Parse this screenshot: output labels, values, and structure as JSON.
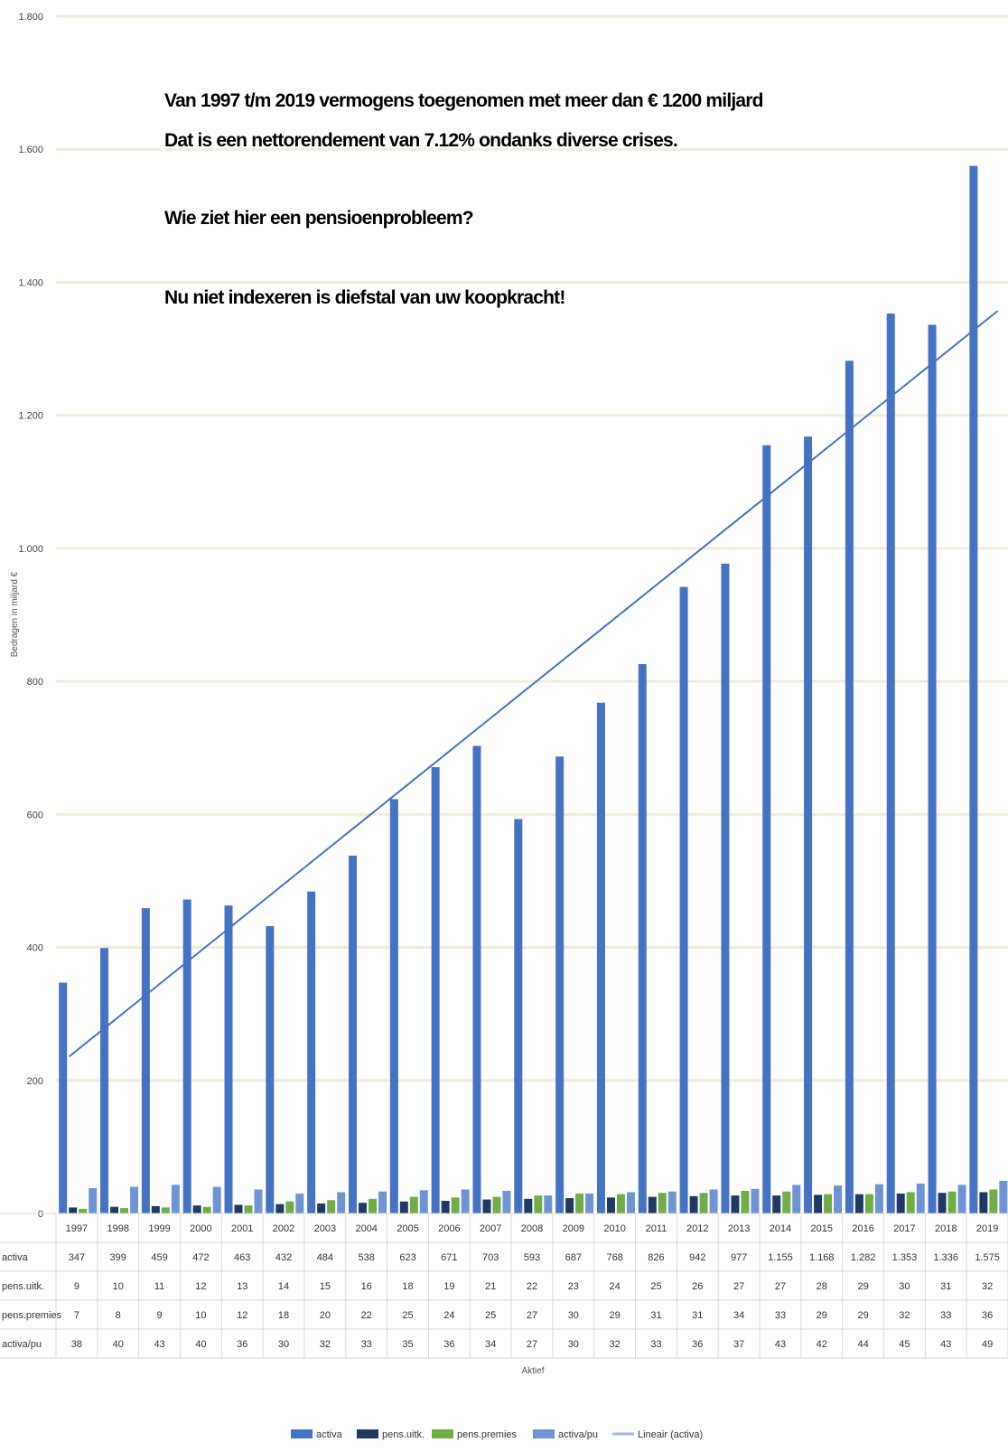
{
  "chart_data": {
    "type": "bar",
    "ylabel": "Bedragen in miljard €",
    "xlabel": "Aktief",
    "ylim": [
      0,
      1800
    ],
    "yticks": [
      0,
      200,
      400,
      600,
      800,
      1000,
      1200,
      1400,
      1600,
      1800
    ],
    "ytick_labels": [
      "0",
      "200",
      "400",
      "600",
      "800",
      "1.000",
      "1.200",
      "1.400",
      "1.600",
      "1.800"
    ],
    "grid": true,
    "legend_position": "bottom",
    "categories": [
      "1997",
      "1998",
      "1999",
      "2000",
      "2001",
      "2002",
      "2003",
      "2004",
      "2005",
      "2006",
      "2007",
      "2008",
      "2009",
      "2010",
      "2011",
      "2012",
      "2013",
      "2014",
      "2015",
      "2016",
      "2017",
      "2018",
      "2019"
    ],
    "series": [
      {
        "name": "activa",
        "color": "#4472c4",
        "values": [
          347,
          399,
          459,
          472,
          463,
          432,
          484,
          538,
          623,
          671,
          703,
          593,
          687,
          768,
          826,
          942,
          977,
          1155,
          1168,
          1282,
          1353,
          1336,
          1575
        ],
        "labels": [
          "347",
          "399",
          "459",
          "472",
          "463",
          "432",
          "484",
          "538",
          "623",
          "671",
          "703",
          "593",
          "687",
          "768",
          "826",
          "942",
          "977",
          "1.155",
          "1.168",
          "1.282",
          "1.353",
          "1.336",
          "1.575"
        ]
      },
      {
        "name": "pens.uitk.",
        "color": "#203864",
        "values": [
          9,
          10,
          11,
          12,
          13,
          14,
          15,
          16,
          18,
          19,
          21,
          22,
          23,
          24,
          25,
          26,
          27,
          27,
          28,
          29,
          30,
          31,
          32
        ]
      },
      {
        "name": "pens.premies",
        "color": "#70ad47",
        "values": [
          7,
          8,
          9,
          10,
          12,
          18,
          20,
          22,
          25,
          24,
          25,
          27,
          30,
          29,
          31,
          31,
          34,
          33,
          29,
          29,
          32,
          33,
          36
        ]
      },
      {
        "name": "activa/pu",
        "color": "#6f94d6",
        "values": [
          38,
          40,
          43,
          40,
          36,
          30,
          32,
          33,
          35,
          36,
          34,
          27,
          30,
          32,
          33,
          36,
          37,
          43,
          42,
          44,
          45,
          43,
          49
        ]
      }
    ],
    "trendline": {
      "name": "Lineair (activa)",
      "color": "#4472c4",
      "start": 236,
      "end": 1357
    },
    "annotations": [
      "Van 1997 t/m 2019 vermogens toegenomen met meer dan € 1200 miljard",
      "Dat is een nettorendement van 7.12% ondanks diverse crises.",
      "Wie ziet hier een pensioenprobleem?",
      "Nu niet indexeren is diefstal van uw koopkracht!"
    ],
    "table_rows": [
      {
        "label": "activa",
        "series": 0
      },
      {
        "label": "pens.uitk.",
        "series": 1
      },
      {
        "label": "pens.premies",
        "series": 2
      },
      {
        "label": "activa/pu",
        "series": 3
      }
    ],
    "legend": [
      "activa",
      "pens.uitk.",
      "pens.premies",
      "activa/pu",
      "Lineair (activa)"
    ]
  }
}
